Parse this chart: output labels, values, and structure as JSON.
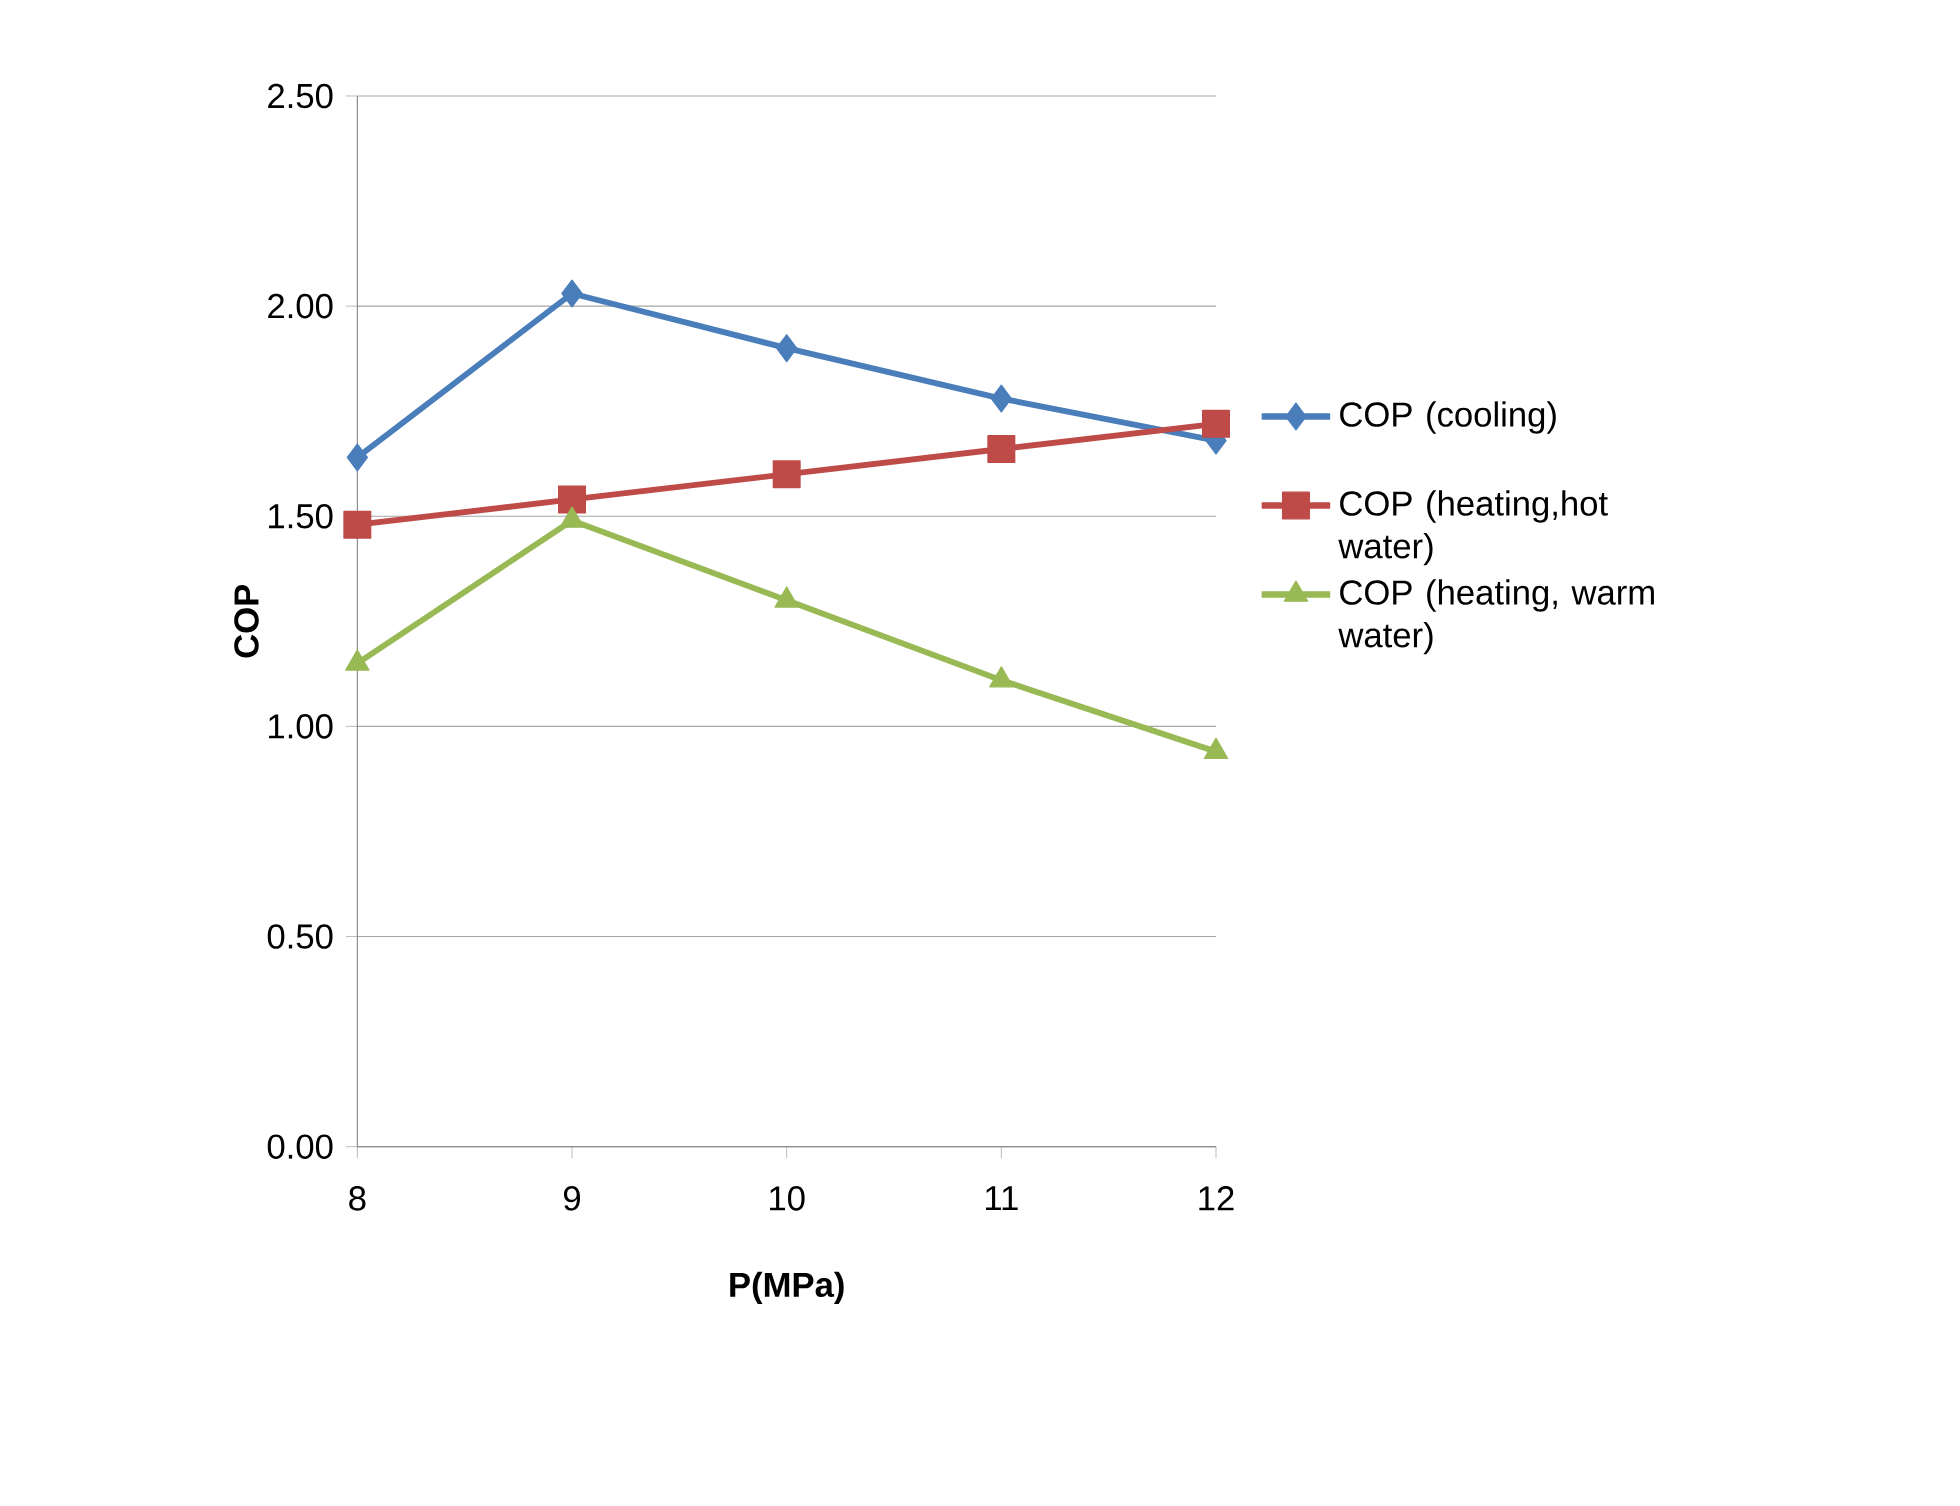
{
  "chart_data": {
    "type": "line",
    "xlabel": "P(MPa)",
    "ylabel": "COP",
    "categories": [
      "8",
      "9",
      "10",
      "11",
      "12"
    ],
    "series": [
      {
        "name": "COP (cooling)",
        "color": "#4a7ebb",
        "marker": "diamond",
        "values": [
          1.64,
          2.03,
          1.9,
          1.78,
          1.68
        ]
      },
      {
        "name": "COP (heating,hot water)",
        "color": "#be4b48",
        "marker": "square",
        "values": [
          1.48,
          1.54,
          1.6,
          1.66,
          1.72
        ]
      },
      {
        "name": "COP (heating, warm water)",
        "color": "#98b954",
        "marker": "triangle",
        "values": [
          1.15,
          1.49,
          1.3,
          1.11,
          0.94
        ]
      }
    ],
    "ylim": [
      0,
      2.5
    ],
    "yticks": [
      {
        "value": 0,
        "label": "0.00"
      },
      {
        "value": 0.5,
        "label": "0.50"
      },
      {
        "value": 1,
        "label": "1.00"
      },
      {
        "value": 1.5,
        "label": "1.50"
      },
      {
        "value": 2,
        "label": "2.00"
      },
      {
        "value": 2.5,
        "label": "2.50"
      }
    ],
    "grid": "y",
    "legend": "right",
    "line_style": "solid"
  }
}
